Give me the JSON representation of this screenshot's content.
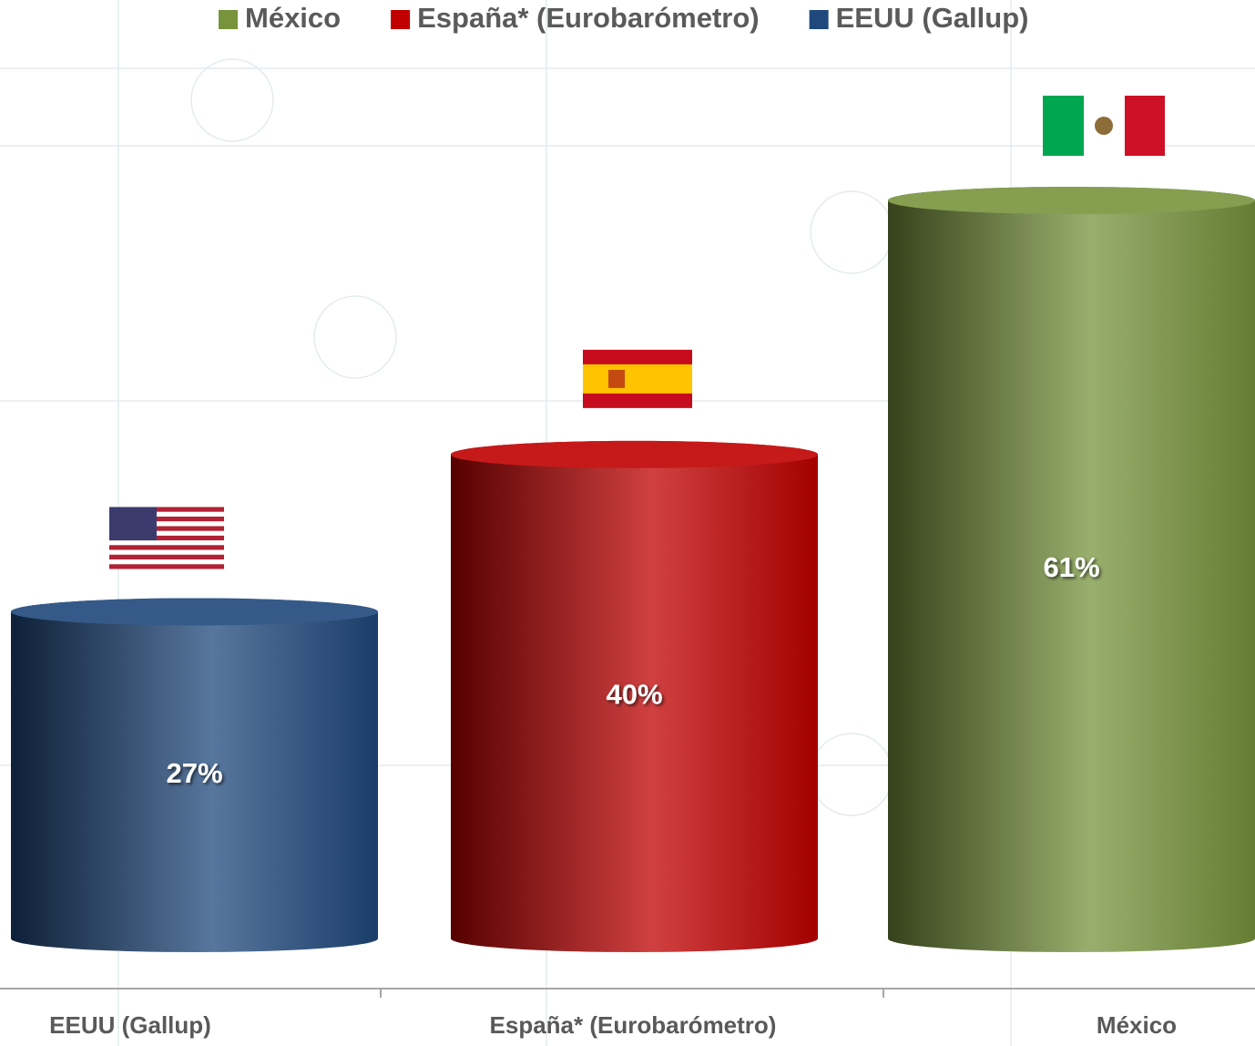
{
  "chart_data": {
    "type": "bar",
    "categories": [
      "EEUU (Gallup)",
      "España* (Eurobarómetro)",
      "México"
    ],
    "values": [
      27,
      40,
      61
    ],
    "value_labels": [
      "27%",
      "40%",
      "61%"
    ],
    "colors": [
      "#1f487c",
      "#c00000",
      "#77933c"
    ]
  }
}
